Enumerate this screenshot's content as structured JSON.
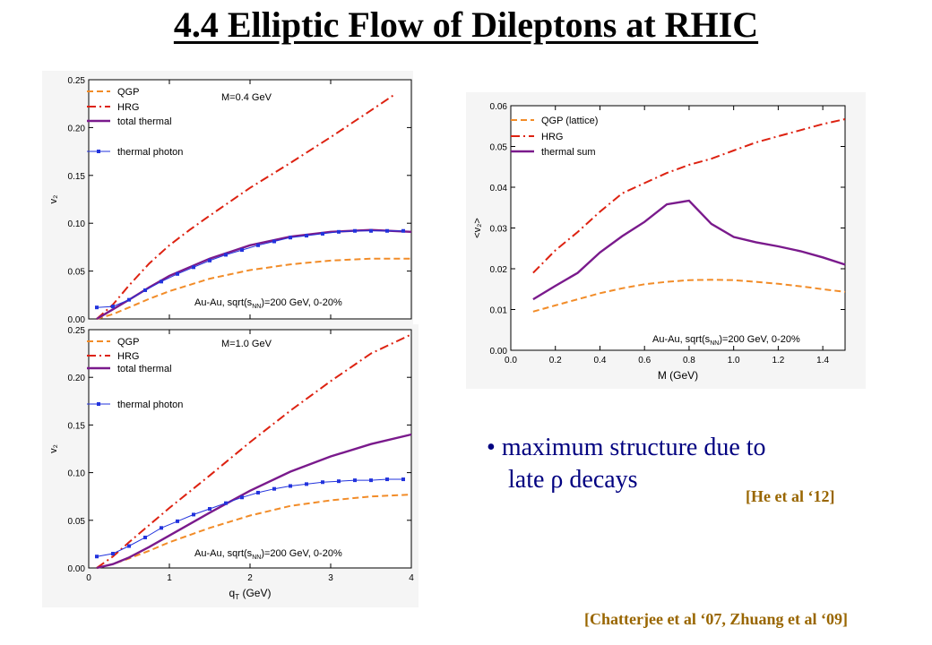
{
  "slide": {
    "title": "4.4 Elliptic Flow of Dileptons at RHIC",
    "bullet_line1": "maximum structure due to",
    "bullet_line2": "late ρ decays",
    "citation_he": "[He et al ‘12]",
    "citation_chatterjee": "[Chatterjee et al ‘07, Zhuang et al ‘09]"
  },
  "colors": {
    "qgp": "#f28c28",
    "hrg": "#dd2211",
    "total": "#7a1a8c",
    "photon": "#2233dd",
    "text_blue": "#000080",
    "citation": "#996600"
  },
  "chart_data": [
    {
      "type": "line",
      "ylabel": "v₂",
      "xlim": [
        0,
        4
      ],
      "ylim": [
        0,
        0.25
      ],
      "yticks": [
        "0.00",
        "0.05",
        "0.10",
        "0.15",
        "0.20",
        "0.25"
      ],
      "annotation": "M=0.4 GeV",
      "system_label": "Au-Au, sqrt(s",
      "system_sub": "NN",
      "system_suffix": ")=200 GeV, 0-20%",
      "series": [
        {
          "name": "QGP",
          "style": "dash",
          "x": [
            0.1,
            0.3,
            0.5,
            0.75,
            1.0,
            1.5,
            2.0,
            2.5,
            3.0,
            3.5,
            4.0
          ],
          "y": [
            0.0,
            0.005,
            0.012,
            0.021,
            0.029,
            0.042,
            0.051,
            0.057,
            0.061,
            0.063,
            0.063
          ]
        },
        {
          "name": "HRG",
          "style": "dashdot",
          "x": [
            0.1,
            0.3,
            0.5,
            0.75,
            1.0,
            1.25,
            1.5,
            2.0,
            2.5,
            3.0,
            3.5,
            3.8
          ],
          "y": [
            0.0,
            0.015,
            0.035,
            0.058,
            0.077,
            0.093,
            0.108,
            0.137,
            0.163,
            0.19,
            0.218,
            0.235
          ]
        },
        {
          "name": "total thermal",
          "style": "solid",
          "x": [
            0.1,
            0.3,
            0.5,
            0.75,
            1.0,
            1.5,
            2.0,
            2.5,
            3.0,
            3.5,
            4.0
          ],
          "y": [
            0.0,
            0.01,
            0.02,
            0.033,
            0.045,
            0.063,
            0.077,
            0.086,
            0.091,
            0.093,
            0.091
          ]
        },
        {
          "name": "thermal photon",
          "style": "marker",
          "x": [
            0.1,
            0.3,
            0.5,
            0.7,
            0.9,
            1.1,
            1.3,
            1.5,
            1.7,
            1.9,
            2.1,
            2.3,
            2.5,
            2.7,
            2.9,
            3.1,
            3.3,
            3.5,
            3.7,
            3.9
          ],
          "y": [
            0.012,
            0.013,
            0.02,
            0.03,
            0.039,
            0.047,
            0.054,
            0.061,
            0.067,
            0.072,
            0.077,
            0.081,
            0.085,
            0.087,
            0.089,
            0.091,
            0.092,
            0.092,
            0.092,
            0.092
          ]
        }
      ]
    },
    {
      "type": "line",
      "xlabel": "q",
      "xlabel_sub": "T",
      "xlabel_suffix": " (GeV)",
      "ylabel": "v₂",
      "xlim": [
        0,
        4
      ],
      "ylim": [
        0,
        0.25
      ],
      "xticks": [
        "0",
        "1",
        "2",
        "3",
        "4"
      ],
      "yticks": [
        "0.00",
        "0.05",
        "0.10",
        "0.15",
        "0.20",
        "0.25"
      ],
      "annotation": "M=1.0 GeV",
      "system_label": "Au-Au, sqrt(s",
      "system_sub": "NN",
      "system_suffix": ")=200 GeV, 0-20%",
      "series": [
        {
          "name": "QGP",
          "style": "dash",
          "x": [
            0.1,
            0.3,
            0.5,
            0.75,
            1.0,
            1.5,
            2.0,
            2.5,
            3.0,
            3.5,
            4.0
          ],
          "y": [
            0.0,
            0.004,
            0.01,
            0.018,
            0.027,
            0.042,
            0.055,
            0.065,
            0.071,
            0.075,
            0.077
          ]
        },
        {
          "name": "HRG",
          "style": "dashdot",
          "x": [
            0.1,
            0.3,
            0.5,
            0.75,
            1.0,
            1.5,
            2.0,
            2.5,
            3.0,
            3.5,
            4.0
          ],
          "y": [
            0.0,
            0.012,
            0.027,
            0.045,
            0.063,
            0.097,
            0.132,
            0.165,
            0.196,
            0.225,
            0.245
          ]
        },
        {
          "name": "total thermal",
          "style": "solid",
          "x": [
            0.1,
            0.3,
            0.5,
            0.75,
            1.0,
            1.5,
            2.0,
            2.5,
            3.0,
            3.5,
            4.0
          ],
          "y": [
            0.0,
            0.004,
            0.011,
            0.022,
            0.034,
            0.058,
            0.081,
            0.101,
            0.117,
            0.13,
            0.14
          ]
        },
        {
          "name": "thermal photon",
          "style": "marker",
          "x": [
            0.1,
            0.3,
            0.5,
            0.7,
            0.9,
            1.1,
            1.3,
            1.5,
            1.7,
            1.9,
            2.1,
            2.3,
            2.5,
            2.7,
            2.9,
            3.1,
            3.3,
            3.5,
            3.7,
            3.9
          ],
          "y": [
            0.012,
            0.015,
            0.023,
            0.032,
            0.042,
            0.049,
            0.056,
            0.062,
            0.068,
            0.074,
            0.079,
            0.083,
            0.086,
            0.088,
            0.09,
            0.091,
            0.092,
            0.092,
            0.093,
            0.093
          ]
        }
      ]
    },
    {
      "type": "line",
      "xlabel": "M (GeV)",
      "ylabel": "<v₂>",
      "xlim": [
        0,
        1.5
      ],
      "ylim": [
        0,
        0.06
      ],
      "xticks": [
        "0.0",
        "0.2",
        "0.4",
        "0.6",
        "0.8",
        "1.0",
        "1.2",
        "1.4"
      ],
      "yticks": [
        "0.00",
        "0.01",
        "0.02",
        "0.03",
        "0.04",
        "0.05",
        "0.06"
      ],
      "system_label": "Au-Au, sqrt(s",
      "system_sub": "NN",
      "system_suffix": ")=200 GeV, 0-20%",
      "series": [
        {
          "name": "QGP (lattice)",
          "style": "dash",
          "x": [
            0.1,
            0.2,
            0.3,
            0.4,
            0.5,
            0.6,
            0.7,
            0.8,
            0.9,
            1.0,
            1.1,
            1.2,
            1.3,
            1.4,
            1.5
          ],
          "y": [
            0.0095,
            0.011,
            0.0125,
            0.014,
            0.0152,
            0.0162,
            0.0168,
            0.0172,
            0.0173,
            0.0172,
            0.0168,
            0.0163,
            0.0157,
            0.015,
            0.0143
          ]
        },
        {
          "name": "HRG",
          "style": "dashdot",
          "x": [
            0.1,
            0.2,
            0.3,
            0.4,
            0.5,
            0.6,
            0.7,
            0.8,
            0.9,
            1.0,
            1.1,
            1.2,
            1.3,
            1.4,
            1.5
          ],
          "y": [
            0.019,
            0.0245,
            0.029,
            0.034,
            0.0385,
            0.041,
            0.0435,
            0.0455,
            0.047,
            0.049,
            0.051,
            0.0525,
            0.054,
            0.0555,
            0.0567
          ]
        },
        {
          "name": "thermal sum",
          "style": "solid",
          "x": [
            0.1,
            0.2,
            0.3,
            0.4,
            0.5,
            0.6,
            0.7,
            0.8,
            0.9,
            1.0,
            1.1,
            1.2,
            1.3,
            1.4,
            1.5
          ],
          "y": [
            0.0125,
            0.0158,
            0.019,
            0.024,
            0.028,
            0.0315,
            0.0358,
            0.0367,
            0.031,
            0.0278,
            0.0265,
            0.0255,
            0.0243,
            0.0228,
            0.021
          ]
        }
      ]
    }
  ]
}
